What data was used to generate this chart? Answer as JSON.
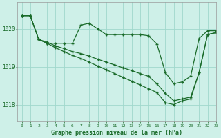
{
  "title": "Graphe pression niveau de la mer (hPa)",
  "background_color": "#cef0e8",
  "grid_color": "#a0d8cc",
  "line_color": "#1a6b2a",
  "xlim": [
    -0.5,
    23
  ],
  "ylim": [
    1017.55,
    1020.7
  ],
  "yticks": [
    1018,
    1019,
    1020
  ],
  "xticks": [
    0,
    1,
    2,
    3,
    4,
    5,
    6,
    7,
    8,
    9,
    10,
    11,
    12,
    13,
    14,
    15,
    16,
    17,
    18,
    19,
    20,
    21,
    22,
    23
  ],
  "s1": [
    1020.35,
    1020.35,
    1019.72,
    1019.62,
    1019.62,
    1019.62,
    1019.62,
    1020.1,
    1020.15,
    1020.0,
    1019.85,
    1019.85,
    1019.85,
    1019.85,
    1019.85,
    1019.82,
    1019.6,
    1018.85,
    1018.55,
    1018.6,
    1018.75,
    1019.75,
    1019.95,
    1019.95
  ],
  "s2": [
    1020.35,
    1020.35,
    1019.72,
    1019.65,
    1019.55,
    1019.48,
    1019.4,
    1019.35,
    1019.28,
    1019.2,
    1019.12,
    1019.05,
    1018.97,
    1018.9,
    1018.82,
    1018.75,
    1018.55,
    1018.3,
    1018.1,
    1018.15,
    1018.2,
    1018.85,
    1019.85,
    1019.9
  ],
  "s3": [
    1020.35,
    1020.35,
    1019.72,
    1019.62,
    1019.5,
    1019.4,
    1019.3,
    1019.22,
    1019.12,
    1019.02,
    1018.92,
    1018.82,
    1018.72,
    1018.62,
    1018.52,
    1018.42,
    1018.32,
    1018.05,
    1018.0,
    1018.1,
    1018.15,
    1018.85,
    1019.85,
    1019.9
  ]
}
